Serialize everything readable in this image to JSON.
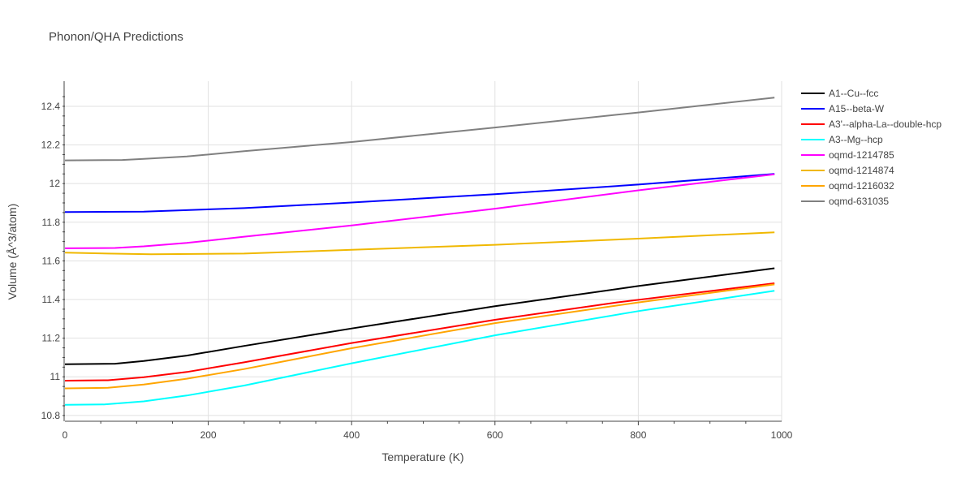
{
  "chart_data": {
    "type": "line",
    "title": "Phonon/QHA Predictions",
    "xlabel": "Temperature (K)",
    "ylabel": "Volume (Å^3/atom)",
    "xlim": [
      0,
      1000
    ],
    "ylim": [
      10.77,
      12.53
    ],
    "xticks": [
      0,
      200,
      400,
      600,
      800,
      1000
    ],
    "xtick_labels": [
      "0",
      "200",
      "400",
      "600",
      "800",
      "1000"
    ],
    "yticks": [
      10.8,
      11,
      11.2,
      11.4,
      11.6,
      11.8,
      12,
      12.2,
      12.4
    ],
    "ytick_labels": [
      "10.8",
      "11",
      "11.2",
      "11.4",
      "11.6",
      "11.8",
      "12",
      "12.2",
      "12.4"
    ],
    "grid": true,
    "legend_position": "right",
    "series": [
      {
        "name": "A1--Cu--fcc",
        "color": "#000000",
        "x": [
          0,
          70,
          110,
          170,
          250,
          400,
          600,
          800,
          990
        ],
        "y": [
          11.065,
          11.068,
          11.082,
          11.11,
          11.16,
          11.25,
          11.365,
          11.47,
          11.562
        ]
      },
      {
        "name": "A15--beta-W",
        "color": "#0000ff",
        "x": [
          0,
          110,
          250,
          400,
          600,
          800,
          990
        ],
        "y": [
          11.853,
          11.855,
          11.873,
          11.902,
          11.945,
          11.995,
          12.05
        ]
      },
      {
        "name": "A3'--alpha-La--double-hcp",
        "color": "#ff0000",
        "x": [
          0,
          60,
          110,
          170,
          250,
          400,
          600,
          770,
          990
        ],
        "y": [
          10.98,
          10.982,
          10.998,
          11.025,
          11.075,
          11.175,
          11.295,
          11.385,
          11.484
        ]
      },
      {
        "name": "A3--Mg--hcp",
        "color": "#00ffff",
        "x": [
          0,
          55,
          110,
          170,
          250,
          400,
          600,
          800,
          990
        ],
        "y": [
          10.855,
          10.857,
          10.873,
          10.903,
          10.955,
          11.07,
          11.215,
          11.34,
          11.445
        ]
      },
      {
        "name": "oqmd-1214785",
        "color": "#ff00ff",
        "x": [
          0,
          70,
          110,
          170,
          250,
          400,
          600,
          800,
          990
        ],
        "y": [
          11.665,
          11.667,
          11.675,
          11.693,
          11.725,
          11.783,
          11.87,
          11.965,
          12.048
        ]
      },
      {
        "name": "oqmd-1214874",
        "color": "#f0b800",
        "x": [
          0,
          60,
          120,
          250,
          400,
          600,
          800,
          990
        ],
        "y": [
          11.643,
          11.638,
          11.634,
          11.638,
          11.657,
          11.683,
          11.715,
          11.748
        ]
      },
      {
        "name": "oqmd-1216032",
        "color": "#ffa500",
        "x": [
          0,
          60,
          110,
          170,
          250,
          400,
          600,
          800,
          990
        ],
        "y": [
          10.94,
          10.943,
          10.96,
          10.99,
          11.04,
          11.148,
          11.278,
          11.385,
          11.478
        ]
      },
      {
        "name": "oqmd-631035",
        "color": "#808080",
        "x": [
          0,
          80,
          110,
          170,
          250,
          400,
          600,
          800,
          990
        ],
        "y": [
          12.12,
          12.122,
          12.128,
          12.14,
          12.168,
          12.215,
          12.29,
          12.368,
          12.445
        ]
      }
    ]
  }
}
